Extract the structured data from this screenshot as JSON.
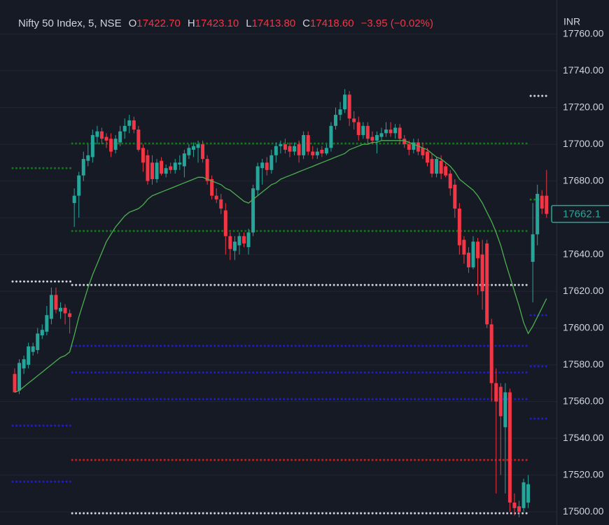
{
  "chart_data": {
    "type": "candlestick",
    "symbol": "Nifty 50 Index, 5, NSE",
    "ohlc_legend": [
      {
        "label": "O",
        "value": "17422.70"
      },
      {
        "label": "H",
        "value": "17423.10"
      },
      {
        "label": "L",
        "value": "17413.80"
      },
      {
        "label": "C",
        "value": "17418.60"
      }
    ],
    "change": "−3.95 (−0.02%)",
    "currency": "INR",
    "last_price_label": "17662.1",
    "up_color": "#26a69a",
    "down_color": "#f23645",
    "ma_color": "#4caf50",
    "grid": true,
    "ylim": [
      17492.8,
      17778.5
    ],
    "yticks": [
      {
        "value": 17500,
        "label": "17500.00"
      },
      {
        "value": 17520,
        "label": "17520.00"
      },
      {
        "value": 17540,
        "label": "17540.00"
      },
      {
        "value": 17560,
        "label": "17560.00"
      },
      {
        "value": 17580,
        "label": "17580.00"
      },
      {
        "value": 17600,
        "label": "17600.00"
      },
      {
        "value": 17620,
        "label": "17620.00"
      },
      {
        "value": 17640,
        "label": "17640.00"
      },
      {
        "value": 17660,
        "label": "17660.00"
      },
      {
        "value": 17680,
        "label": "17680.00"
      },
      {
        "value": 17700,
        "label": "17700.00"
      },
      {
        "value": 17720,
        "label": "17720.00"
      },
      {
        "value": 17740,
        "label": "17740.00"
      },
      {
        "value": 17760,
        "label": "17760.00"
      }
    ],
    "open": [
      17575,
      17566,
      17578,
      17580,
      17587,
      17588,
      17596,
      17598,
      17605,
      17618,
      17609,
      17611,
      17608,
      17668,
      17672,
      17683,
      17691,
      17693,
      17704,
      17707,
      17704,
      17703,
      17697,
      17701,
      17707,
      17710,
      17713,
      17708,
      17698,
      17694,
      17690,
      17681,
      17691,
      17684,
      17688,
      17686,
      17689,
      17688,
      17694,
      17697,
      17698,
      17700,
      17692,
      17681,
      17672,
      17670,
      17664,
      17650,
      17642,
      17645,
      17650,
      17644,
      17652,
      17675,
      17687,
      17690,
      17686,
      17694,
      17699,
      17700,
      17699,
      17696,
      17700,
      17694,
      17705,
      17696,
      17694,
      17697,
      17695,
      17698,
      17710,
      17716,
      17719,
      17727,
      17714,
      17712,
      17705,
      17710,
      17704,
      17702,
      17704,
      17706,
      17708,
      17706,
      17709,
      17703,
      17700,
      17697,
      17701,
      17698,
      17696,
      17692,
      17684,
      17691,
      17688,
      17684,
      17678,
      17665,
      17648,
      17641,
      17633,
      17647,
      17640,
      17646,
      17602,
      17570,
      17568,
      17546,
      17565,
      17505,
      17503,
      17502,
      17505,
      17636,
      17651,
      17672,
      17672
    ],
    "high": [
      17578,
      17583,
      17585,
      17592,
      17592,
      17600,
      17602,
      17612,
      17622,
      17622,
      17614,
      17613,
      17610,
      17676,
      17685,
      17696,
      17700,
      17708,
      17710,
      17709,
      17706,
      17706,
      17705,
      17710,
      17714,
      17716,
      17715,
      17710,
      17700,
      17697,
      17694,
      17692,
      17693,
      17689,
      17690,
      17692,
      17694,
      17697,
      17700,
      17701,
      17702,
      17702,
      17694,
      17683,
      17676,
      17673,
      17668,
      17652,
      17650,
      17652,
      17652,
      17654,
      17678,
      17690,
      17692,
      17693,
      17697,
      17701,
      17702,
      17703,
      17701,
      17701,
      17702,
      17707,
      17707,
      17699,
      17698,
      17699,
      17700,
      17712,
      17720,
      17723,
      17730,
      17729,
      17718,
      17715,
      17712,
      17712,
      17707,
      17707,
      17709,
      17712,
      17712,
      17711,
      17711,
      17705,
      17702,
      17703,
      17703,
      17701,
      17698,
      17695,
      17693,
      17694,
      17690,
      17686,
      17681,
      17668,
      17650,
      17644,
      17650,
      17649,
      17648,
      17648,
      17605,
      17578,
      17570,
      17570,
      17567,
      17510,
      17506,
      17518,
      17520,
      17668,
      17678,
      17675,
      17686
    ],
    "low": [
      17565,
      17564,
      17575,
      17578,
      17585,
      17586,
      17594,
      17596,
      17602,
      17608,
      17605,
      17602,
      17597,
      17655,
      17660,
      17680,
      17688,
      17690,
      17700,
      17700,
      17698,
      17693,
      17695,
      17699,
      17703,
      17706,
      17706,
      17696,
      17685,
      17678,
      17678,
      17679,
      17683,
      17682,
      17684,
      17684,
      17686,
      17682,
      17692,
      17693,
      17690,
      17690,
      17678,
      17670,
      17668,
      17662,
      17640,
      17637,
      17637,
      17640,
      17644,
      17640,
      17650,
      17672,
      17678,
      17683,
      17684,
      17690,
      17695,
      17695,
      17693,
      17694,
      17690,
      17692,
      17694,
      17692,
      17692,
      17693,
      17694,
      17696,
      17708,
      17713,
      17717,
      17710,
      17708,
      17702,
      17703,
      17700,
      17700,
      17695,
      17702,
      17704,
      17704,
      17703,
      17700,
      17698,
      17694,
      17695,
      17694,
      17692,
      17688,
      17682,
      17682,
      17681,
      17682,
      17672,
      17660,
      17640,
      17635,
      17630,
      17632,
      17618,
      17610,
      17600,
      17560,
      17510,
      17520,
      17510,
      17500,
      17498,
      17497,
      17500,
      17502,
      17614,
      17645,
      17662,
      17660
    ],
    "close": [
      17565,
      17581,
      17583,
      17590,
      17590,
      17597,
      17599,
      17607,
      17618,
      17610,
      17611,
      17608,
      17606,
      17672,
      17683,
      17692,
      17694,
      17705,
      17707,
      17703,
      17702,
      17696,
      17703,
      17707,
      17710,
      17713,
      17708,
      17697,
      17690,
      17680,
      17681,
      17690,
      17684,
      17687,
      17686,
      17690,
      17690,
      17695,
      17698,
      17699,
      17700,
      17692,
      17680,
      17672,
      17670,
      17665,
      17650,
      17643,
      17647,
      17650,
      17646,
      17652,
      17676,
      17688,
      17690,
      17686,
      17694,
      17699,
      17700,
      17697,
      17696,
      17699,
      17694,
      17705,
      17696,
      17694,
      17696,
      17695,
      17698,
      17710,
      17716,
      17719,
      17727,
      17714,
      17712,
      17705,
      17710,
      17703,
      17702,
      17705,
      17706,
      17708,
      17706,
      17709,
      17703,
      17700,
      17697,
      17701,
      17696,
      17694,
      17690,
      17684,
      17692,
      17684,
      17683,
      17676,
      17665,
      17645,
      17640,
      17633,
      17647,
      17638,
      17620,
      17602,
      17570,
      17560,
      17552,
      17565,
      17505,
      17502,
      17500,
      17516,
      17515,
      17651,
      17673,
      17665,
      17662.1
    ],
    "ma": [
      17565,
      17566,
      17568,
      17570,
      17572,
      17574,
      17576,
      17578,
      17580,
      17582,
      17584,
      17585,
      17587,
      17596,
      17606,
      17614,
      17622,
      17629,
      17635,
      17641,
      17647,
      17651,
      17655,
      17658,
      17661,
      17663,
      17664,
      17665,
      17667,
      17670,
      17672,
      17673,
      17674,
      17675,
      17676,
      17677,
      17678,
      17679,
      17680,
      17681,
      17682,
      17682,
      17681,
      17680,
      17679,
      17678,
      17676,
      17675,
      17673,
      17671,
      17669,
      17668,
      17670,
      17672,
      17674,
      17676,
      17678,
      17679,
      17681,
      17682,
      17683,
      17684,
      17685,
      17686,
      17687,
      17688,
      17689,
      17690,
      17691,
      17692,
      17693,
      17694,
      17695,
      17697,
      17698,
      17699,
      17700,
      17700,
      17701,
      17701,
      17702,
      17702,
      17702,
      17702,
      17702,
      17702,
      17701,
      17700,
      17699,
      17698,
      17697,
      17695,
      17693,
      17692,
      17690,
      17688,
      17685,
      17681,
      17679,
      17677,
      17675,
      17672,
      17668,
      17663,
      17658,
      17652,
      17645,
      17636,
      17628,
      17620,
      17612,
      17603,
      17597,
      17601,
      17606,
      17611,
      17616
    ],
    "levels": [
      {
        "value": 17687.0,
        "color": "#0f7a16",
        "from": 0,
        "to": 12
      },
      {
        "value": 17625.3,
        "color": "#d1d4dc",
        "from": 0,
        "to": 12
      },
      {
        "value": 17546.9,
        "color": "#1e1ecc",
        "from": 0,
        "to": 12
      },
      {
        "value": 17516.4,
        "color": "#1e1ecc",
        "from": 0,
        "to": 12
      },
      {
        "value": 17700.4,
        "color": "#0f7a16",
        "from": 13,
        "to": 112
      },
      {
        "value": 17652.8,
        "color": "#0f7a16",
        "from": 13,
        "to": 112
      },
      {
        "value": 17623.4,
        "color": "#d1d4dc",
        "from": 13,
        "to": 112
      },
      {
        "value": 17590.3,
        "color": "#1e1ecc",
        "from": 13,
        "to": 112
      },
      {
        "value": 17575.8,
        "color": "#1e1ecc",
        "from": 13,
        "to": 112
      },
      {
        "value": 17561.3,
        "color": "#1e1ecc",
        "from": 13,
        "to": 112
      },
      {
        "value": 17528.2,
        "color": "#c81e1e",
        "from": 13,
        "to": 112
      },
      {
        "value": 17499.2,
        "color": "#d1d4dc",
        "from": 13,
        "to": 112
      },
      {
        "value": 17726.3,
        "color": "#d1d4dc",
        "from": 113,
        "to": 116
      },
      {
        "value": 17669.9,
        "color": "#0f7a16",
        "from": 113,
        "to": 116
      },
      {
        "value": 17607.0,
        "color": "#1e1ecc",
        "from": 113,
        "to": 116
      },
      {
        "value": 17579.2,
        "color": "#1e1ecc",
        "from": 113,
        "to": 116
      },
      {
        "value": 17550.7,
        "color": "#1e1ecc",
        "from": 113,
        "to": 116
      }
    ]
  }
}
